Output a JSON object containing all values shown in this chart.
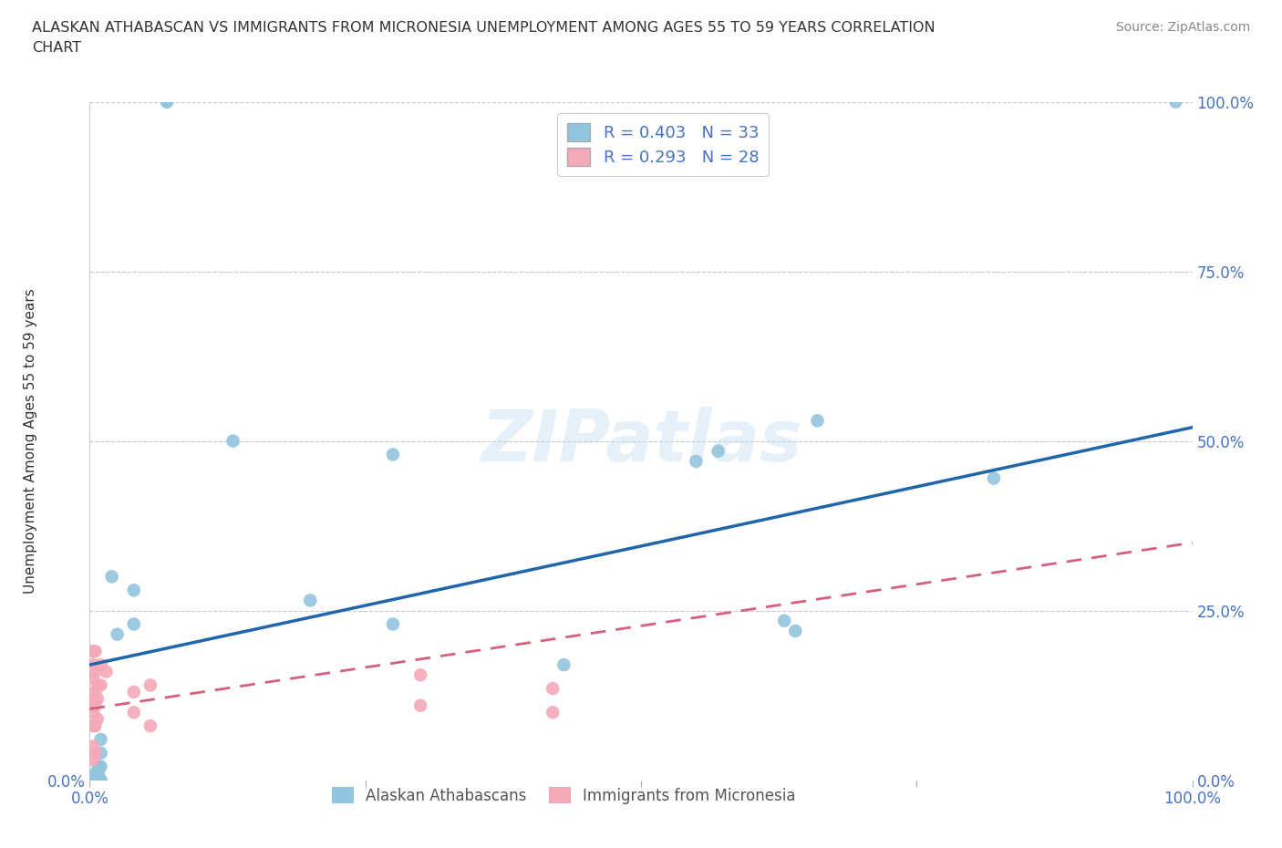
{
  "title": "ALASKAN ATHABASCAN VS IMMIGRANTS FROM MICRONESIA UNEMPLOYMENT AMONG AGES 55 TO 59 YEARS CORRELATION\nCHART",
  "source": "Source: ZipAtlas.com",
  "ylabel": "Unemployment Among Ages 55 to 59 years",
  "xlim": [
    0,
    1
  ],
  "ylim": [
    0,
    1
  ],
  "yticks": [
    0.0,
    0.25,
    0.5,
    0.75,
    1.0
  ],
  "ytick_labels": [
    "0.0%",
    "25.0%",
    "50.0%",
    "75.0%",
    "100.0%"
  ],
  "xticks": [
    0.0,
    0.25,
    0.5,
    0.75,
    1.0
  ],
  "xtick_labels": [
    "0.0%",
    "",
    "",
    "",
    "100.0%"
  ],
  "r_blue": 0.403,
  "n_blue": 33,
  "r_pink": 0.293,
  "n_pink": 28,
  "legend_label_blue": "Alaskan Athabascans",
  "legend_label_pink": "Immigrants from Micronesia",
  "blue_color": "#92c5de",
  "pink_color": "#f4a9b8",
  "blue_line_color": "#2166ac",
  "pink_line_color": "#d6607a",
  "watermark_text": "ZIPatlas",
  "blue_line_x": [
    0.0,
    1.0
  ],
  "blue_line_y": [
    0.17,
    0.52
  ],
  "pink_line_x": [
    0.0,
    1.0
  ],
  "pink_line_y": [
    0.105,
    0.35
  ],
  "blue_dots_x": [
    0.02,
    0.07,
    0.07,
    0.005,
    0.005,
    0.005,
    0.005,
    0.008,
    0.008,
    0.008,
    0.01,
    0.01,
    0.01,
    0.008,
    0.008,
    0.01,
    0.01,
    0.025,
    0.04,
    0.04,
    0.13,
    0.2,
    0.275,
    0.275,
    0.43,
    0.55,
    0.57,
    0.63,
    0.64,
    0.66,
    0.82,
    0.985
  ],
  "blue_dots_y": [
    0.3,
    1.0,
    1.0,
    0.01,
    0.0,
    0.0,
    0.0,
    0.02,
    0.01,
    0.0,
    0.06,
    0.04,
    0.02,
    0.0,
    0.0,
    0.0,
    0.0,
    0.215,
    0.28,
    0.23,
    0.5,
    0.265,
    0.23,
    0.48,
    0.17,
    0.47,
    0.485,
    0.235,
    0.22,
    0.53,
    0.445,
    1.0
  ],
  "pink_dots_x": [
    0.003,
    0.003,
    0.003,
    0.003,
    0.003,
    0.003,
    0.003,
    0.003,
    0.005,
    0.005,
    0.005,
    0.005,
    0.005,
    0.005,
    0.007,
    0.007,
    0.007,
    0.01,
    0.01,
    0.015,
    0.04,
    0.04,
    0.055,
    0.055,
    0.3,
    0.3,
    0.42,
    0.42
  ],
  "pink_dots_y": [
    0.19,
    0.17,
    0.15,
    0.12,
    0.1,
    0.08,
    0.05,
    0.03,
    0.19,
    0.16,
    0.13,
    0.11,
    0.08,
    0.04,
    0.14,
    0.12,
    0.09,
    0.17,
    0.14,
    0.16,
    0.13,
    0.1,
    0.14,
    0.08,
    0.155,
    0.11,
    0.135,
    0.1
  ],
  "background_color": "#ffffff",
  "grid_color": "#c8c8c8",
  "tick_color": "#4472c4",
  "title_color": "#333333",
  "source_color": "#888888",
  "label_color": "#555555"
}
